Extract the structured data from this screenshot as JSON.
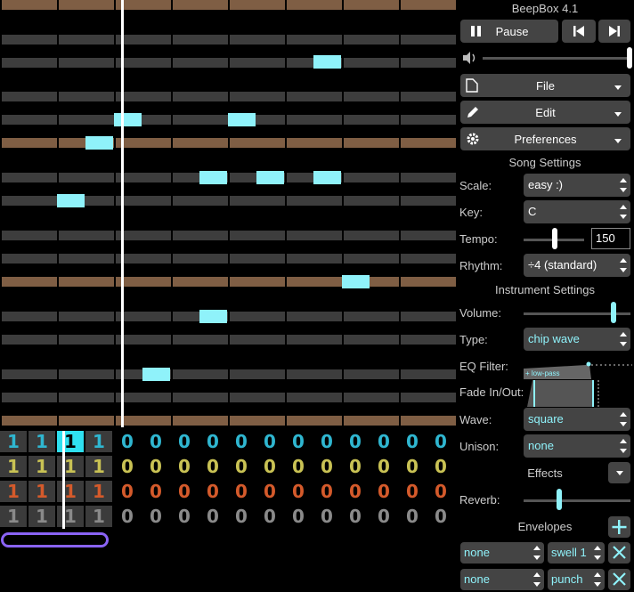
{
  "app": {
    "title": "BeepBox 4.1"
  },
  "transport": {
    "pause_label": "Pause"
  },
  "menus": {
    "file": "File",
    "edit": "Edit",
    "preferences": "Preferences"
  },
  "song_settings": {
    "heading": "Song Settings",
    "scale_label": "Scale:",
    "scale_value": "easy :)",
    "key_label": "Key:",
    "key_value": "C",
    "tempo_label": "Tempo:",
    "tempo_value": "150",
    "rhythm_label": "Rhythm:",
    "rhythm_value": "÷4 (standard)"
  },
  "instrument_settings": {
    "heading": "Instrument Settings",
    "volume_label": "Volume:",
    "type_label": "Type:",
    "type_value": "chip wave",
    "eq_label": "EQ Filter:",
    "eq_tag": "+ low-pass",
    "fade_label": "Fade In/Out:",
    "wave_label": "Wave:",
    "wave_value": "square",
    "unison_label": "Unison:",
    "unison_value": "none",
    "effects_label": "Effects",
    "reverb_label": "Reverb:",
    "envelopes_label": "Envelopes",
    "envelopes": [
      {
        "target": "none",
        "type": "swell 1"
      },
      {
        "target": "none",
        "type": "punch"
      }
    ]
  },
  "pattern_grid": {
    "channels": [
      {
        "color": "#2fb6d0",
        "values": [
          "1",
          "1",
          "1",
          "1",
          "0",
          "0",
          "0",
          "0",
          "0",
          "0",
          "0",
          "0",
          "0",
          "0",
          "0",
          "0"
        ]
      },
      {
        "color": "#c9c254",
        "values": [
          "1",
          "1",
          "1",
          "1",
          "0",
          "0",
          "0",
          "0",
          "0",
          "0",
          "0",
          "0",
          "0",
          "0",
          "0",
          "0"
        ]
      },
      {
        "color": "#d45a2b",
        "values": [
          "1",
          "1",
          "1",
          "1",
          "0",
          "0",
          "0",
          "0",
          "0",
          "0",
          "0",
          "0",
          "0",
          "0",
          "0",
          "0"
        ]
      },
      {
        "color": "#8a8a8a",
        "values": [
          "1",
          "1",
          "1",
          "1",
          "0",
          "0",
          "0",
          "0",
          "0",
          "0",
          "0",
          "0",
          "0",
          "0",
          "0",
          "0"
        ]
      }
    ],
    "selected_bar": 3
  },
  "colors": {
    "note": "#8ff2fa",
    "accent": "#8a63f5"
  }
}
